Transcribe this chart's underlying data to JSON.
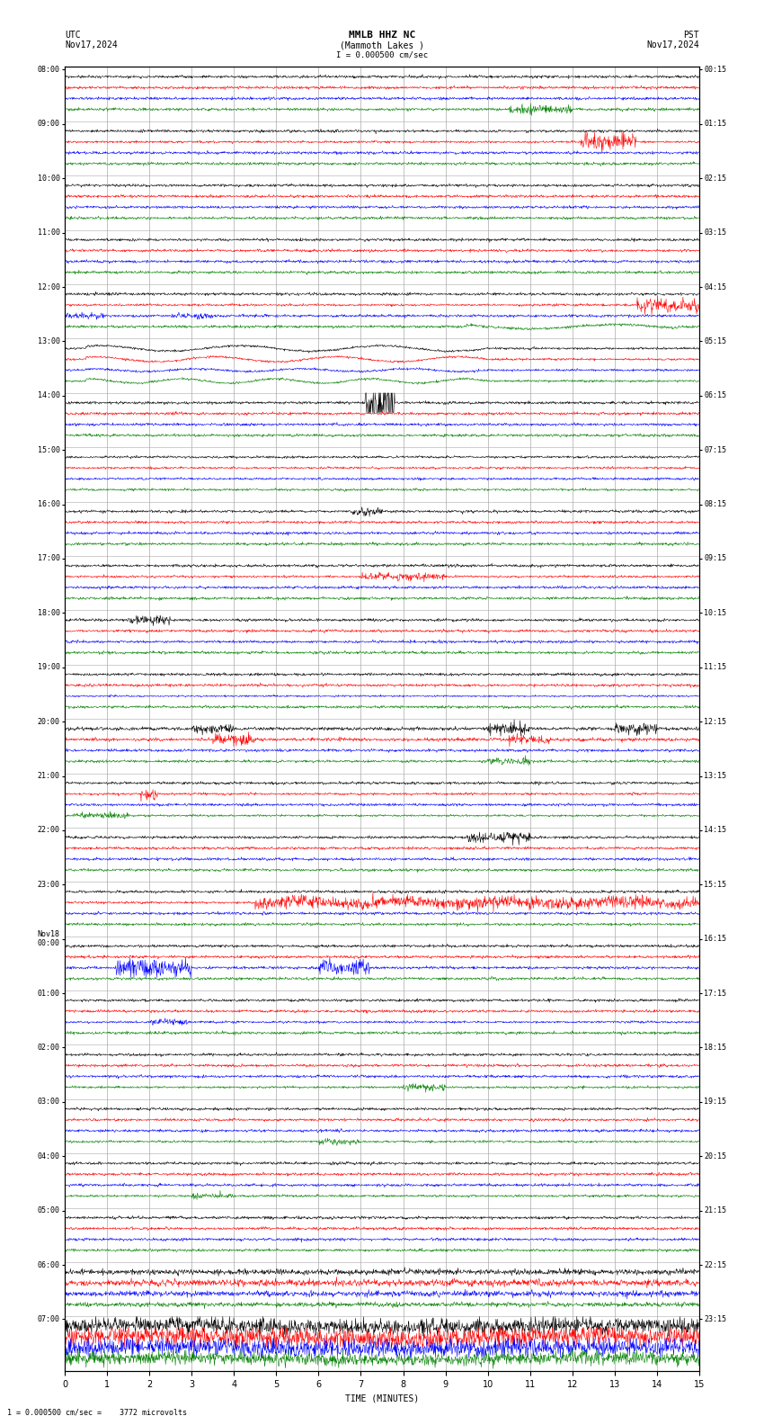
{
  "title_line1": "MMLB HHZ NC",
  "title_line2": "(Mammoth Lakes )",
  "title_scale": "I = 0.000500 cm/sec",
  "utc_label": "UTC",
  "utc_date": "Nov17,2024",
  "pst_label": "PST",
  "pst_date": "Nov17,2024",
  "left_times": [
    "08:00",
    "09:00",
    "10:00",
    "11:00",
    "12:00",
    "13:00",
    "14:00",
    "15:00",
    "16:00",
    "17:00",
    "18:00",
    "19:00",
    "20:00",
    "21:00",
    "22:00",
    "23:00",
    "Nov18\n00:00",
    "01:00",
    "02:00",
    "03:00",
    "04:00",
    "05:00",
    "06:00",
    "07:00"
  ],
  "right_times": [
    "00:15",
    "01:15",
    "02:15",
    "03:15",
    "04:15",
    "05:15",
    "06:15",
    "07:15",
    "08:15",
    "09:15",
    "10:15",
    "11:15",
    "12:15",
    "13:15",
    "14:15",
    "15:15",
    "16:15",
    "17:15",
    "18:15",
    "19:15",
    "20:15",
    "21:15",
    "22:15",
    "23:15"
  ],
  "xlabel": "TIME (MINUTES)",
  "footer": "1 = 0.000500 cm/sec =    3772 microvolts",
  "num_rows": 24,
  "traces_per_row": 4,
  "colors": [
    "black",
    "red",
    "blue",
    "green"
  ],
  "bg_color": "#ffffff",
  "grid_color": "#aaaaaa",
  "num_minutes": 15,
  "fig_width": 8.5,
  "fig_height": 15.84,
  "dpi": 100
}
